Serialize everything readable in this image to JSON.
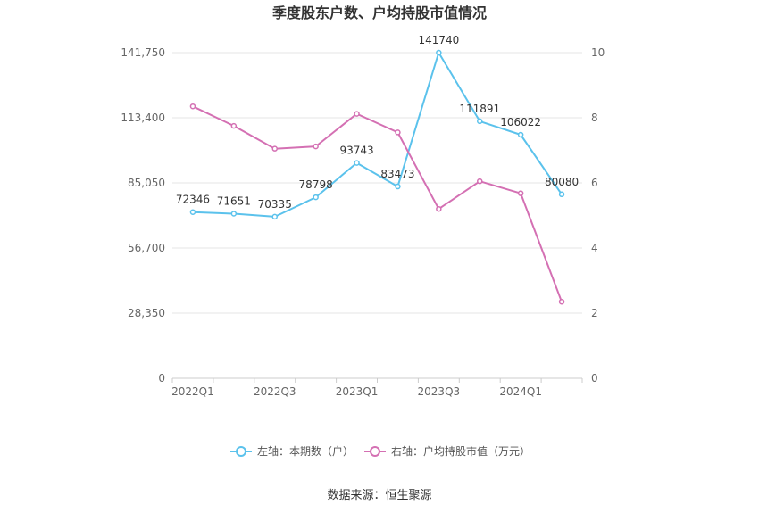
{
  "chart_data": {
    "type": "line",
    "title": "季度股东户数、户均持股市值情况",
    "categories": [
      "2022Q1",
      "2022Q2",
      "2022Q3",
      "2022Q4",
      "2023Q1",
      "2023Q2",
      "2023Q3",
      "2023Q4",
      "2024Q1",
      "2024Q2"
    ],
    "x_tick_labels": [
      "2022Q1",
      "2022Q3",
      "2023Q1",
      "2023Q3",
      "2024Q1"
    ],
    "left_axis": {
      "ylim": [
        0,
        141750
      ],
      "ticks": [
        "0",
        "28,350",
        "56,700",
        "85,050",
        "113,400",
        "141,750"
      ]
    },
    "right_axis": {
      "ylim": [
        0,
        10
      ],
      "ticks": [
        "0",
        "2",
        "4",
        "6",
        "8",
        "10"
      ]
    },
    "series": [
      {
        "name": "左轴：本期数（户）",
        "axis": "left",
        "color": "#5bc2ec",
        "values": [
          72346,
          71651,
          70335,
          78798,
          93743,
          83473,
          141740,
          111891,
          106022,
          80080
        ],
        "labels": [
          "72346",
          "71651",
          "70335",
          "78798",
          "93743",
          "83473",
          "141740",
          "111891",
          "106022",
          "80080"
        ]
      },
      {
        "name": "右轴：户均持股市值（万元）",
        "axis": "right",
        "color": "#d470b3",
        "values": [
          8.35,
          7.75,
          7.05,
          7.12,
          8.12,
          7.55,
          5.2,
          6.05,
          5.68,
          2.35
        ]
      }
    ],
    "grid": true,
    "legend_position": "bottom",
    "source": "数据来源：恒生聚源"
  }
}
